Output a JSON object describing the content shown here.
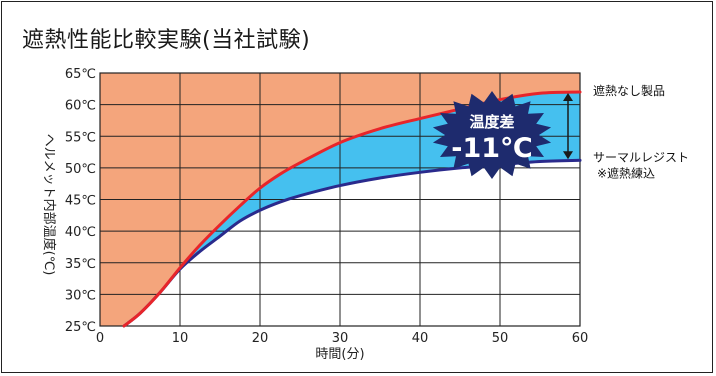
{
  "chart_data": {
    "type": "line",
    "title": "遮熱性能比較実験(当社試験)",
    "xlabel": "時間(分)",
    "ylabel": "ヘルメット内部温度(℃)",
    "xlim": [
      0,
      60
    ],
    "ylim": [
      25,
      65
    ],
    "x_ticks": [
      "0",
      "10",
      "20",
      "30",
      "40",
      "50",
      "60"
    ],
    "y_ticks": [
      "25℃",
      "30℃",
      "35℃",
      "40℃",
      "45℃",
      "50℃",
      "55℃",
      "60℃",
      "65℃"
    ],
    "grid": true,
    "legend_placement": "right",
    "series": [
      {
        "name": "遮熱なし製品",
        "color": "#e8252a",
        "x": [
          3,
          5,
          7.5,
          10,
          12.5,
          15,
          17.5,
          20,
          22.5,
          25,
          30,
          35,
          40,
          45,
          50,
          55,
          60
        ],
        "y": [
          25,
          27,
          30.3,
          34.2,
          37.8,
          41,
          44,
          46.8,
          49,
          50.8,
          54,
          56.2,
          57.8,
          59.3,
          60.8,
          61.8,
          62
        ]
      },
      {
        "name": "サーマルレジスト",
        "note": "※遮熱練込",
        "color": "#2a2a8c",
        "x": [
          3,
          5,
          7.5,
          10,
          12.5,
          15,
          17.5,
          20,
          22.5,
          25,
          30,
          35,
          40,
          45,
          50,
          55,
          60
        ],
        "y": [
          25,
          27,
          30.3,
          34,
          36.8,
          39.2,
          41.6,
          43.3,
          44.6,
          45.6,
          47.2,
          48.4,
          49.3,
          50,
          50.5,
          51,
          51.2
        ]
      }
    ],
    "annotation": {
      "line1": "温度差",
      "line2": "-11℃"
    },
    "colors": {
      "above_fill": "#f4a57c",
      "between_fill": "#45c0ef",
      "grid": "#222222",
      "burst": "#1e2b6e"
    }
  }
}
